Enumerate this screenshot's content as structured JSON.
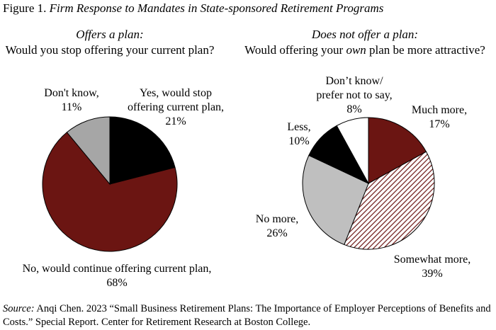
{
  "figure": {
    "label": "Figure 1.",
    "title": "Firm Response to Mandates in State-sponsored Retirement Programs"
  },
  "colors": {
    "maroon": "#6b1512",
    "black": "#000000",
    "gray": "#a6a6a6",
    "light_gray": "#bfbfbf",
    "white": "#ffffff",
    "stroke": "#000000"
  },
  "chart_data": [
    {
      "type": "pie",
      "subtitle_italic": "Offers a plan:",
      "subtitle": "Would you stop offering your current plan?",
      "slices": [
        {
          "label_lines": [
            "Yes, would stop",
            "offering current plan,"
          ],
          "value_text": "21%",
          "value": 21,
          "color": "#000000",
          "pattern": "solid"
        },
        {
          "label_lines": [
            "No, would continue offering current plan,"
          ],
          "value_text": "68%",
          "value": 68,
          "color": "#6b1512",
          "pattern": "solid"
        },
        {
          "label_lines": [
            "Don't know,"
          ],
          "value_text": "11%",
          "value": 11,
          "color": "#a6a6a6",
          "pattern": "solid"
        }
      ]
    },
    {
      "type": "pie",
      "subtitle_italic": "Does not offer a plan:",
      "subtitle_pre": "Would offering your ",
      "subtitle_em": "own",
      "subtitle_post": " plan be more attractive?",
      "slices": [
        {
          "label_lines": [
            "Much more,"
          ],
          "value_text": "17%",
          "value": 17,
          "color": "#6b1512",
          "pattern": "solid"
        },
        {
          "label_lines": [
            "Somewhat more,"
          ],
          "value_text": "39%",
          "value": 39,
          "color": "#6b1512",
          "pattern": "hatch"
        },
        {
          "label_lines": [
            "No more,"
          ],
          "value_text": "26%",
          "value": 26,
          "color": "#bfbfbf",
          "pattern": "solid"
        },
        {
          "label_lines": [
            "Less,"
          ],
          "value_text": "10%",
          "value": 10,
          "color": "#000000",
          "pattern": "solid"
        },
        {
          "label_lines": [
            "Don’t know/",
            "prefer not to say,"
          ],
          "value_text": "8%",
          "value": 8,
          "color": "#ffffff",
          "pattern": "solid"
        }
      ]
    }
  ],
  "source": {
    "label": "Source:",
    "text": " Anqi Chen. 2023 “Small Business Retirement Plans: The Importance of Employer Perceptions of Benefits and Costs.” Special Report. Center for Retirement Research at Boston College."
  }
}
